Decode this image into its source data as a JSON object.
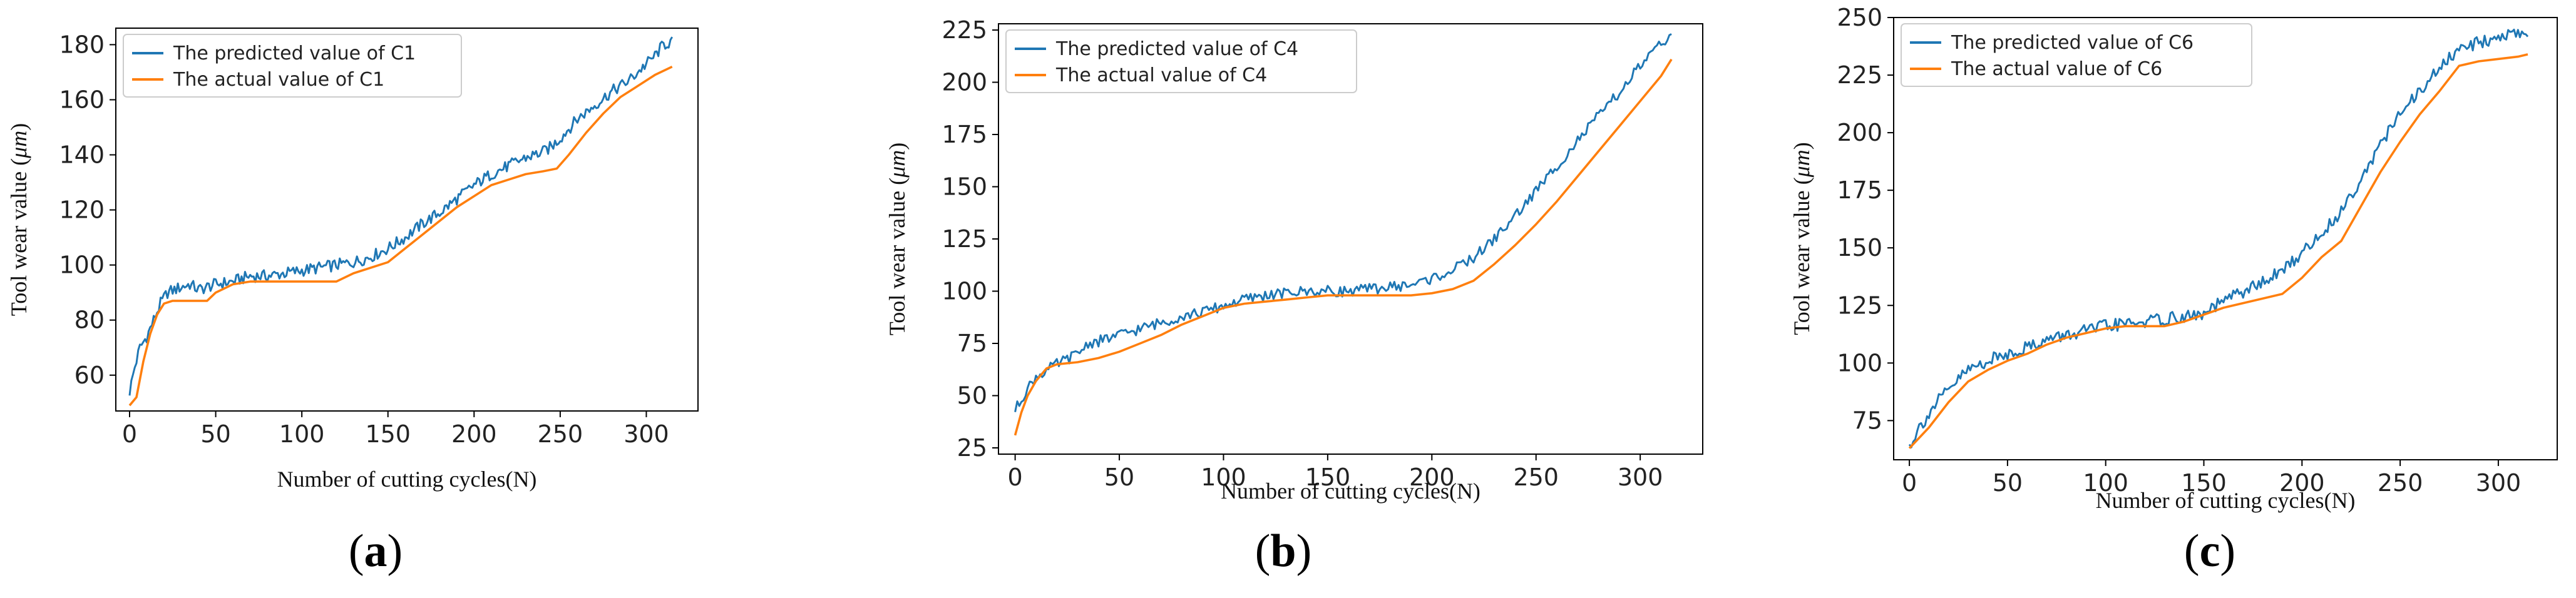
{
  "chart_data": [
    {
      "type": "line",
      "panel": "a",
      "panel_label": [
        "(",
        "a",
        ")"
      ],
      "xlabel": "Number of cutting cycles(N)",
      "ylabel_prefix": "Tool wear value (",
      "ylabel_unit": "μm",
      "ylabel_suffix": ")",
      "xlim": [
        -8,
        330
      ],
      "ylim": [
        47,
        186
      ],
      "xticks": [
        0,
        50,
        100,
        150,
        200,
        250,
        300
      ],
      "yticks": [
        60,
        80,
        100,
        120,
        140,
        160,
        180
      ],
      "legend_position": "top-left",
      "series": [
        {
          "name": "The predicted value of C1",
          "color": "#1f77b4",
          "points": [
            [
              0,
              54
            ],
            [
              3,
              63
            ],
            [
              6,
              70
            ],
            [
              10,
              74
            ],
            [
              14,
              80
            ],
            [
              18,
              86
            ],
            [
              22,
              90
            ],
            [
              26,
              91
            ],
            [
              30,
              92
            ],
            [
              35,
              93
            ],
            [
              40,
              91
            ],
            [
              50,
              93
            ],
            [
              60,
              94
            ],
            [
              70,
              96
            ],
            [
              80,
              96
            ],
            [
              90,
              97
            ],
            [
              100,
              98
            ],
            [
              110,
              99
            ],
            [
              120,
              100
            ],
            [
              130,
              101
            ],
            [
              140,
              103
            ],
            [
              150,
              106
            ],
            [
              160,
              110
            ],
            [
              170,
              115
            ],
            [
              180,
              119
            ],
            [
              190,
              124
            ],
            [
              200,
              129
            ],
            [
              210,
              133
            ],
            [
              220,
              136
            ],
            [
              230,
              139
            ],
            [
              240,
              141
            ],
            [
              245,
              143
            ],
            [
              250,
              146
            ],
            [
              260,
              153
            ],
            [
              270,
              158
            ],
            [
              280,
              163
            ],
            [
              290,
              167
            ],
            [
              300,
              173
            ],
            [
              305,
              176
            ],
            [
              310,
              180
            ],
            [
              315,
              181
            ]
          ],
          "noise": 2.2
        },
        {
          "name": "The actual value of C1",
          "color": "#ff7f0e",
          "points": [
            [
              0,
              49
            ],
            [
              4,
              52
            ],
            [
              8,
              65
            ],
            [
              12,
              75
            ],
            [
              16,
              82
            ],
            [
              20,
              86
            ],
            [
              25,
              87
            ],
            [
              30,
              87
            ],
            [
              40,
              87
            ],
            [
              45,
              87
            ],
            [
              50,
              90
            ],
            [
              60,
              93
            ],
            [
              70,
              94
            ],
            [
              80,
              94
            ],
            [
              100,
              94
            ],
            [
              120,
              94
            ],
            [
              130,
              97
            ],
            [
              150,
              101
            ],
            [
              160,
              106
            ],
            [
              170,
              111
            ],
            [
              180,
              116
            ],
            [
              190,
              121
            ],
            [
              200,
              125
            ],
            [
              210,
              129
            ],
            [
              220,
              131
            ],
            [
              230,
              133
            ],
            [
              240,
              134
            ],
            [
              248,
              135
            ],
            [
              255,
              140
            ],
            [
              265,
              148
            ],
            [
              275,
              155
            ],
            [
              285,
              161
            ],
            [
              295,
              165
            ],
            [
              305,
              169
            ],
            [
              315,
              172
            ]
          ],
          "noise": 0
        }
      ]
    },
    {
      "type": "line",
      "panel": "b",
      "panel_label": [
        "(",
        "b",
        ")"
      ],
      "xlabel": "Number of cutting cycles(N)",
      "ylabel_prefix": "Tool wear value (",
      "ylabel_unit": "μm",
      "ylabel_suffix": ")",
      "xlim": [
        -8,
        330
      ],
      "ylim": [
        22,
        228
      ],
      "xticks": [
        0,
        50,
        100,
        150,
        200,
        250,
        300
      ],
      "yticks": [
        25,
        50,
        75,
        100,
        125,
        150,
        175,
        200,
        225
      ],
      "legend_position": "top-left",
      "series": [
        {
          "name": "The predicted value of C4",
          "color": "#1f77b4",
          "points": [
            [
              0,
              43
            ],
            [
              5,
              52
            ],
            [
              10,
              59
            ],
            [
              20,
              65
            ],
            [
              30,
              70
            ],
            [
              35,
              75
            ],
            [
              40,
              76
            ],
            [
              50,
              79
            ],
            [
              60,
              82
            ],
            [
              70,
              85
            ],
            [
              80,
              88
            ],
            [
              90,
              90
            ],
            [
              100,
              93
            ],
            [
              110,
              96
            ],
            [
              120,
              98
            ],
            [
              130,
              99
            ],
            [
              140,
              100
            ],
            [
              150,
              100
            ],
            [
              160,
              100
            ],
            [
              170,
              101
            ],
            [
              180,
              102
            ],
            [
              190,
              103
            ],
            [
              200,
              106
            ],
            [
              210,
              110
            ],
            [
              220,
              116
            ],
            [
              230,
              125
            ],
            [
              240,
              136
            ],
            [
              250,
              148
            ],
            [
              260,
              160
            ],
            [
              270,
              172
            ],
            [
              280,
              184
            ],
            [
              290,
              195
            ],
            [
              300,
              208
            ],
            [
              310,
              218
            ],
            [
              315,
              224
            ]
          ],
          "noise": 2.6
        },
        {
          "name": "The actual value of C4",
          "color": "#ff7f0e",
          "points": [
            [
              0,
              31
            ],
            [
              3,
              42
            ],
            [
              6,
              50
            ],
            [
              10,
              57
            ],
            [
              15,
              63
            ],
            [
              20,
              65
            ],
            [
              30,
              66
            ],
            [
              40,
              68
            ],
            [
              50,
              71
            ],
            [
              60,
              75
            ],
            [
              70,
              79
            ],
            [
              80,
              84
            ],
            [
              90,
              88
            ],
            [
              100,
              92
            ],
            [
              110,
              94
            ],
            [
              120,
              95
            ],
            [
              130,
              96
            ],
            [
              140,
              97
            ],
            [
              150,
              98
            ],
            [
              160,
              98
            ],
            [
              170,
              98
            ],
            [
              180,
              98
            ],
            [
              190,
              98
            ],
            [
              200,
              99
            ],
            [
              210,
              101
            ],
            [
              220,
              105
            ],
            [
              230,
              113
            ],
            [
              240,
              122
            ],
            [
              250,
              132
            ],
            [
              260,
              143
            ],
            [
              270,
              155
            ],
            [
              280,
              167
            ],
            [
              290,
              179
            ],
            [
              300,
              191
            ],
            [
              310,
              203
            ],
            [
              315,
              211
            ]
          ],
          "noise": 0
        }
      ]
    },
    {
      "type": "line",
      "panel": "c",
      "panel_label": [
        "(",
        "c",
        ")"
      ],
      "xlabel": "Number of cutting cycles(N)",
      "ylabel_prefix": "Tool wear value (",
      "ylabel_unit": "μm",
      "ylabel_suffix": ")",
      "xlim": [
        -8,
        330
      ],
      "ylim": [
        58,
        250
      ],
      "xticks": [
        0,
        50,
        100,
        150,
        200,
        250,
        300
      ],
      "yticks": [
        75,
        100,
        125,
        150,
        175,
        200,
        225,
        250
      ],
      "legend_position": "top-left",
      "series": [
        {
          "name": "The predicted value of C6",
          "color": "#1f77b4",
          "points": [
            [
              0,
              64
            ],
            [
              5,
              72
            ],
            [
              10,
              78
            ],
            [
              15,
              84
            ],
            [
              20,
              88
            ],
            [
              25,
              93
            ],
            [
              30,
              97
            ],
            [
              40,
              101
            ],
            [
              50,
              104
            ],
            [
              60,
              107
            ],
            [
              70,
              110
            ],
            [
              80,
              112
            ],
            [
              90,
              114
            ],
            [
              100,
              116
            ],
            [
              110,
              117
            ],
            [
              120,
              118
            ],
            [
              130,
              119
            ],
            [
              140,
              120
            ],
            [
              150,
              121
            ],
            [
              155,
              124
            ],
            [
              160,
              127
            ],
            [
              170,
              131
            ],
            [
              180,
              135
            ],
            [
              190,
              140
            ],
            [
              200,
              148
            ],
            [
              210,
              156
            ],
            [
              220,
              166
            ],
            [
              230,
              180
            ],
            [
              240,
              195
            ],
            [
              250,
              208
            ],
            [
              260,
              218
            ],
            [
              270,
              228
            ],
            [
              280,
              236
            ],
            [
              290,
              239
            ],
            [
              300,
              242
            ],
            [
              310,
              243
            ],
            [
              315,
              244
            ]
          ],
          "noise": 2.8
        },
        {
          "name": "The actual value of C6",
          "color": "#ff7f0e",
          "points": [
            [
              0,
              63
            ],
            [
              10,
              72
            ],
            [
              20,
              83
            ],
            [
              30,
              92
            ],
            [
              40,
              97
            ],
            [
              50,
              101
            ],
            [
              60,
              104
            ],
            [
              70,
              108
            ],
            [
              80,
              111
            ],
            [
              90,
              113
            ],
            [
              100,
              115
            ],
            [
              110,
              116
            ],
            [
              120,
              116
            ],
            [
              130,
              116
            ],
            [
              140,
              118
            ],
            [
              150,
              121
            ],
            [
              160,
              124
            ],
            [
              170,
              126
            ],
            [
              180,
              128
            ],
            [
              190,
              130
            ],
            [
              200,
              137
            ],
            [
              210,
              146
            ],
            [
              220,
              153
            ],
            [
              230,
              168
            ],
            [
              240,
              183
            ],
            [
              250,
              196
            ],
            [
              260,
              208
            ],
            [
              270,
              218
            ],
            [
              280,
              229
            ],
            [
              290,
              231
            ],
            [
              300,
              232
            ],
            [
              310,
              233
            ],
            [
              315,
              234
            ]
          ],
          "noise": 0
        }
      ]
    }
  ]
}
